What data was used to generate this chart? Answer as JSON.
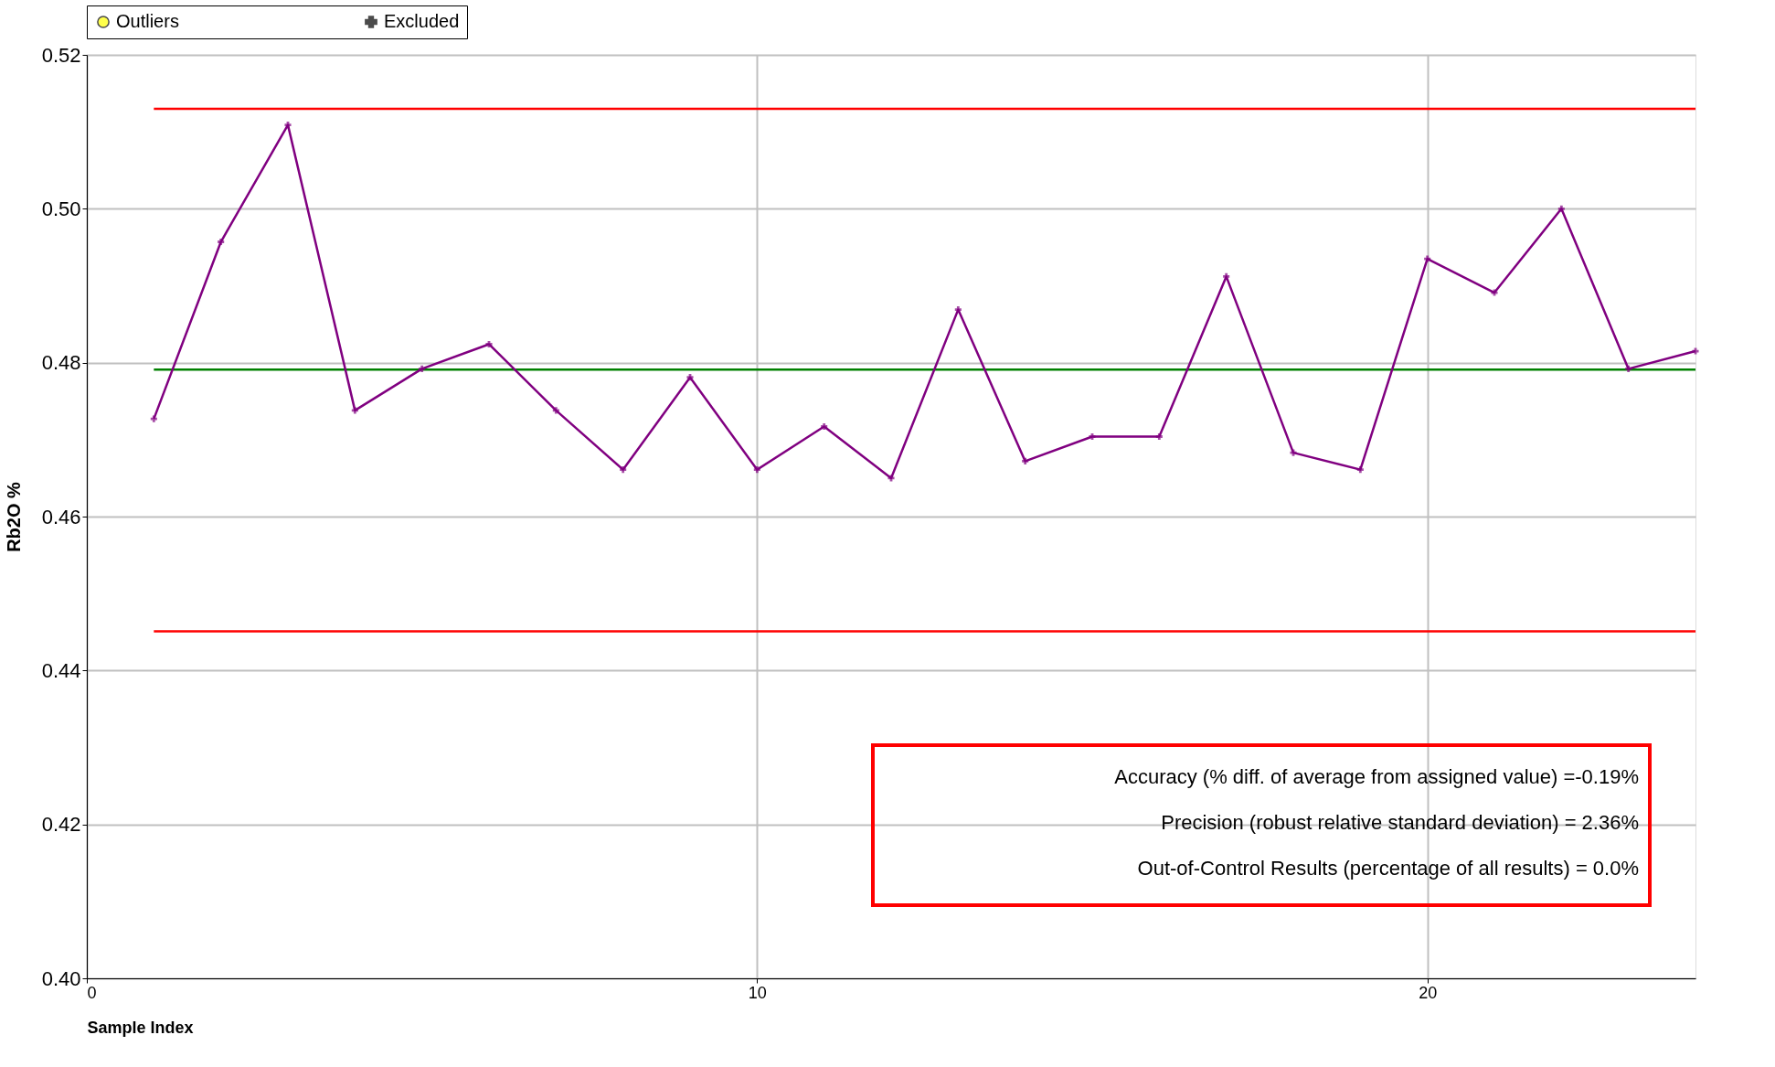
{
  "chart_data": {
    "type": "line",
    "xlabel": "Sample Index",
    "ylabel": "Rb2O %",
    "x": [
      1,
      2,
      3,
      4,
      5,
      6,
      7,
      8,
      9,
      10,
      11,
      12,
      13,
      14,
      15,
      16,
      17,
      18,
      19,
      20,
      21,
      22,
      23,
      24
    ],
    "series": [
      {
        "color": "#800080",
        "values": [
          0.4727,
          0.4957,
          0.5109,
          0.4738,
          0.4792,
          0.4824,
          0.4738,
          0.4661,
          0.4781,
          0.4661,
          0.4717,
          0.465,
          0.4869,
          0.4672,
          0.4704,
          0.4704,
          0.4912,
          0.4683,
          0.4661,
          0.4935,
          0.4891,
          0.5,
          0.4792,
          0.4815
        ],
        "marker": "cross"
      },
      {
        "name": "Outliers",
        "color": "#ffff00",
        "marker": "circle",
        "values": [
          null,
          null,
          null,
          null,
          null,
          null,
          null,
          null,
          null,
          null,
          null,
          null,
          null,
          null,
          null,
          null,
          null,
          null,
          null,
          null,
          null,
          null,
          null,
          null
        ]
      },
      {
        "name": "Excluded",
        "color": "#000000",
        "marker": "cross",
        "values": [
          null,
          null,
          null,
          null,
          null,
          null,
          null,
          null,
          null,
          null,
          null,
          null,
          null,
          null,
          null,
          null,
          null,
          null,
          null,
          null,
          null,
          null,
          null,
          null
        ]
      }
    ],
    "xlim": [
      0,
      24
    ],
    "xticks": [
      0,
      10,
      20
    ],
    "ylim": [
      0.4,
      0.52
    ],
    "yticks": [
      {
        "value": 0.4,
        "label": "0.40"
      },
      0.42,
      0.44,
      0.46,
      0.48,
      {
        "value": 0.5,
        "label": "0.50"
      },
      0.52
    ],
    "ref_lines": [
      {
        "axis": "y",
        "value": 0.513,
        "color": "#ff0000"
      },
      {
        "axis": "y",
        "value": 0.4451,
        "color": "#ff0000"
      },
      {
        "axis": "y",
        "value": 0.4791,
        "color": "#008000"
      }
    ],
    "annotations": [
      "Accuracy (% diff. of average from assigned value) =-0.19%",
      "Precision (robust relative standard deviation) = 2.36%",
      "Out-of-Control Results (percentage of all results) = 0.0%"
    ],
    "grid": true,
    "legend": "top",
    "line_style": "solid"
  }
}
